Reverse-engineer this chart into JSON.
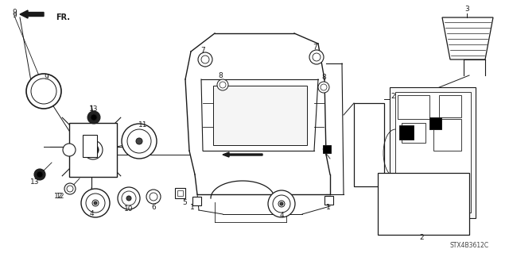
{
  "bg_color": "#ffffff",
  "line_color": "#1a1a1a",
  "stx_label": "STX4B3612C",
  "fig_w": 6.4,
  "fig_h": 3.19,
  "dpi": 100
}
